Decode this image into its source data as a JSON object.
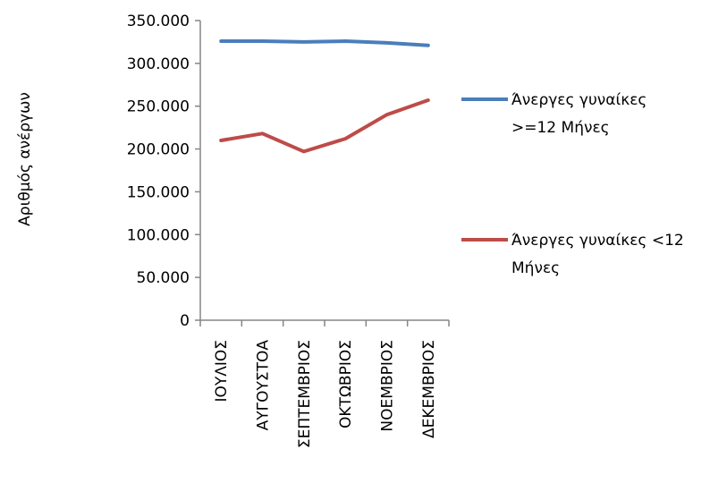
{
  "chart_data": {
    "type": "line",
    "title": "",
    "xlabel": "",
    "ylabel": "Αριθμός ανέργων",
    "categories": [
      "ΙΟΥΛΙΟΣ",
      "ΑΥΓΟΥΣΤΟΑ",
      "ΣΕΠΤΕΜΒΡΙΟΣ",
      "ΟΚΤΩΒΡΙΟΣ",
      "ΝΟΕΜΒΡΙΟΣ",
      "ΔΕΚΕΜΒΡΙΟΣ"
    ],
    "ylim": [
      0,
      350000
    ],
    "yticks": [
      0,
      50000,
      100000,
      150000,
      200000,
      250000,
      300000,
      350000
    ],
    "ytick_labels": [
      "0",
      "50.000",
      "100.000",
      "150.000",
      "200.000",
      "250.000",
      "300.000",
      "350.000"
    ],
    "grid": false,
    "legend_position": "right",
    "series": [
      {
        "name": "Άνεργες γυναίκες >=12 Μήνες",
        "legend_lines": [
          "Άνεργες γυναίκες",
          ">=12 Μήνες"
        ],
        "color": "#4a7ebb",
        "values": [
          326000,
          326000,
          325000,
          326000,
          324000,
          321000
        ]
      },
      {
        "name": "Άνεργες γυναίκες <12 Μήνες",
        "legend_lines": [
          "Άνεργες γυναίκες <12",
          "Μήνες"
        ],
        "color": "#be4b48",
        "values": [
          210000,
          218000,
          197000,
          212000,
          240000,
          257000
        ]
      }
    ]
  }
}
